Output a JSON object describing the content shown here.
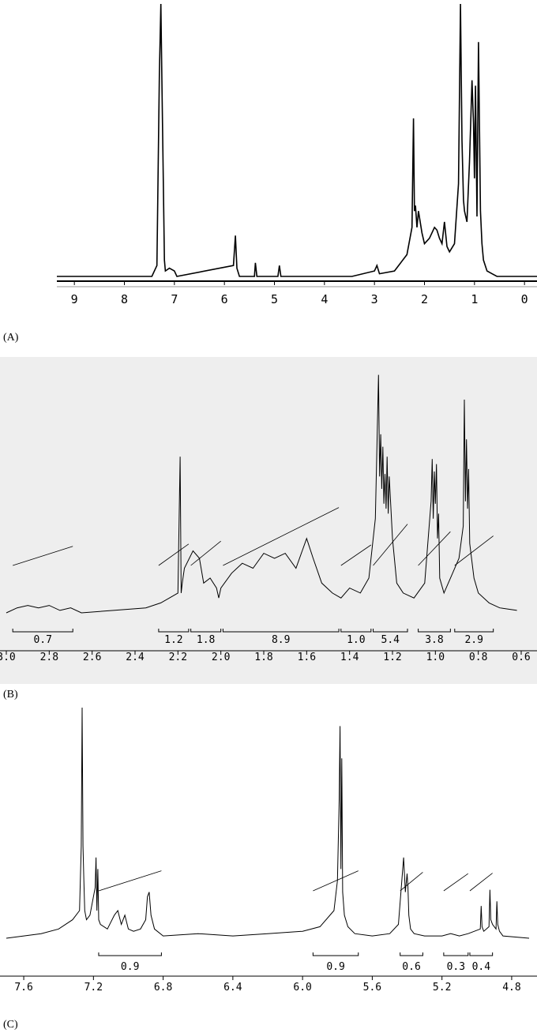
{
  "figure": {
    "panels": [
      {
        "id": "A",
        "caption": "(A)"
      },
      {
        "id": "B",
        "caption": "(B)"
      },
      {
        "id": "C",
        "caption": "(C)"
      }
    ]
  },
  "chart_data": [
    {
      "type": "line",
      "panel": "A",
      "xlabel": "",
      "ylabel": "",
      "xlim": [
        9.35,
        -0.25
      ],
      "x_reversed": true,
      "ticks": [
        "9",
        "8",
        "7",
        "6",
        "5",
        "4",
        "3",
        "2",
        "1",
        "0"
      ],
      "tick_values": [
        9,
        8,
        7,
        6,
        5,
        4,
        3,
        2,
        1,
        0
      ],
      "series": [
        {
          "x": [
            9.35,
            7.45,
            7.35,
            7.3,
            7.27,
            7.25,
            7.2,
            7.18,
            7.1,
            7.0,
            6.95,
            5.82,
            5.78,
            5.75,
            5.7,
            5.4,
            5.38,
            5.35,
            4.93,
            4.9,
            4.87,
            3.45,
            3.0,
            2.95,
            2.9,
            2.6,
            2.35,
            2.25,
            2.22,
            2.2,
            2.18,
            2.15,
            2.12,
            2.05,
            2.0,
            1.9,
            1.8,
            1.75,
            1.7,
            1.65,
            1.6,
            1.55,
            1.5,
            1.4,
            1.32,
            1.28,
            1.25,
            1.22,
            1.2,
            1.15,
            1.1,
            1.05,
            1.02,
            1.0,
            0.98,
            0.95,
            0.92,
            0.88,
            0.85,
            0.82,
            0.75,
            0.65,
            0.55,
            -0.25
          ],
          "y": [
            0.0,
            0.0,
            0.04,
            0.74,
            1.0,
            0.72,
            0.06,
            0.02,
            0.03,
            0.02,
            0.0,
            0.04,
            0.15,
            0.03,
            0.0,
            0.0,
            0.05,
            0.0,
            0.0,
            0.04,
            0.0,
            0.0,
            0.02,
            0.04,
            0.01,
            0.02,
            0.08,
            0.18,
            0.58,
            0.24,
            0.26,
            0.18,
            0.24,
            0.16,
            0.12,
            0.14,
            0.18,
            0.17,
            0.14,
            0.12,
            0.2,
            0.11,
            0.09,
            0.12,
            0.34,
            1.0,
            0.5,
            0.28,
            0.24,
            0.2,
            0.42,
            0.72,
            0.56,
            0.36,
            0.7,
            0.22,
            0.86,
            0.24,
            0.12,
            0.06,
            0.02,
            0.01,
            0.0,
            0.0
          ]
        }
      ]
    },
    {
      "type": "line",
      "panel": "B",
      "xlabel": "",
      "ylabel": "",
      "xlim": [
        3.0,
        0.6
      ],
      "x_reversed": true,
      "ticks": [
        "3.0",
        "2.8",
        "2.6",
        "2.4",
        "2.2",
        "2.0",
        "1.8",
        "1.6",
        "1.4",
        "1.2",
        "1.0",
        "0.8",
        "0.6"
      ],
      "tick_values": [
        3.0,
        2.8,
        2.6,
        2.4,
        2.2,
        2.0,
        1.8,
        1.6,
        1.4,
        1.2,
        1.0,
        0.8,
        0.6
      ],
      "integrals": [
        {
          "from": 2.97,
          "to": 2.69,
          "label": "0.7"
        },
        {
          "from": 2.29,
          "to": 2.15,
          "label": "1.2"
        },
        {
          "from": 2.14,
          "to": 2.0,
          "label": "1.8"
        },
        {
          "from": 1.99,
          "to": 1.45,
          "label": "8.9"
        },
        {
          "from": 1.44,
          "to": 1.3,
          "label": "1.0"
        },
        {
          "from": 1.29,
          "to": 1.13,
          "label": "5.4"
        },
        {
          "from": 1.08,
          "to": 0.93,
          "label": "3.8"
        },
        {
          "from": 0.91,
          "to": 0.73,
          "label": "2.9"
        }
      ],
      "series": [
        {
          "x": [
            3.0,
            2.95,
            2.9,
            2.85,
            2.8,
            2.75,
            2.7,
            2.65,
            2.5,
            2.35,
            2.28,
            2.24,
            2.2,
            2.19,
            2.185,
            2.18,
            2.17,
            2.13,
            2.1,
            2.08,
            2.05,
            2.02,
            2.01,
            2.0,
            1.95,
            1.9,
            1.85,
            1.8,
            1.75,
            1.7,
            1.65,
            1.6,
            1.57,
            1.53,
            1.48,
            1.44,
            1.4,
            1.35,
            1.31,
            1.28,
            1.265,
            1.26,
            1.255,
            1.25,
            1.245,
            1.24,
            1.235,
            1.23,
            1.225,
            1.22,
            1.215,
            1.2,
            1.18,
            1.15,
            1.1,
            1.05,
            1.02,
            1.015,
            1.01,
            1.005,
            1.0,
            0.995,
            0.99,
            0.985,
            0.98,
            0.96,
            0.92,
            0.89,
            0.87,
            0.865,
            0.86,
            0.855,
            0.85,
            0.845,
            0.84,
            0.82,
            0.8,
            0.75,
            0.7,
            0.62
          ],
          "y": [
            0.0,
            0.02,
            0.03,
            0.02,
            0.03,
            0.01,
            0.02,
            0.0,
            0.01,
            0.02,
            0.04,
            0.06,
            0.08,
            0.63,
            0.08,
            0.12,
            0.18,
            0.25,
            0.22,
            0.12,
            0.14,
            0.1,
            0.06,
            0.1,
            0.16,
            0.2,
            0.18,
            0.24,
            0.22,
            0.24,
            0.18,
            0.3,
            0.22,
            0.12,
            0.08,
            0.06,
            0.1,
            0.08,
            0.14,
            0.38,
            0.96,
            0.55,
            0.72,
            0.5,
            0.67,
            0.44,
            0.56,
            0.42,
            0.63,
            0.4,
            0.55,
            0.3,
            0.12,
            0.08,
            0.06,
            0.12,
            0.45,
            0.62,
            0.38,
            0.57,
            0.44,
            0.6,
            0.3,
            0.4,
            0.14,
            0.08,
            0.16,
            0.22,
            0.35,
            0.86,
            0.45,
            0.7,
            0.42,
            0.58,
            0.28,
            0.14,
            0.08,
            0.04,
            0.02,
            0.01
          ]
        }
      ]
    },
    {
      "type": "line",
      "panel": "C",
      "xlabel": "",
      "ylabel": "",
      "xlim": [
        7.7,
        4.7
      ],
      "x_reversed": true,
      "ticks": [
        "7.6",
        "7.2",
        "6.8",
        "6.4",
        "6.0",
        "5.6",
        "5.2",
        "4.8"
      ],
      "tick_values": [
        7.6,
        7.2,
        6.8,
        6.4,
        6.0,
        5.6,
        5.2,
        4.8
      ],
      "integrals": [
        {
          "from": 7.17,
          "to": 6.81,
          "label": "0.9"
        },
        {
          "from": 5.94,
          "to": 5.68,
          "label": "0.9"
        },
        {
          "from": 5.44,
          "to": 5.31,
          "label": "0.6"
        },
        {
          "from": 5.19,
          "to": 5.05,
          "label": "0.3"
        },
        {
          "from": 5.04,
          "to": 4.91,
          "label": "0.4"
        }
      ],
      "series": [
        {
          "x": [
            7.7,
            7.5,
            7.4,
            7.32,
            7.28,
            7.27,
            7.265,
            7.26,
            7.255,
            7.25,
            7.24,
            7.22,
            7.19,
            7.185,
            7.18,
            7.175,
            7.17,
            7.16,
            7.12,
            7.08,
            7.06,
            7.04,
            7.02,
            7.0,
            6.97,
            6.93,
            6.9,
            6.89,
            6.88,
            6.87,
            6.85,
            6.8,
            6.6,
            6.4,
            6.2,
            6.0,
            5.9,
            5.82,
            5.8,
            5.79,
            5.785,
            5.78,
            5.775,
            5.77,
            5.76,
            5.74,
            5.7,
            5.6,
            5.5,
            5.45,
            5.42,
            5.41,
            5.4,
            5.395,
            5.39,
            5.38,
            5.36,
            5.3,
            5.2,
            5.15,
            5.1,
            5.05,
            4.98,
            4.975,
            4.97,
            4.96,
            4.93,
            4.925,
            4.92,
            4.91,
            4.89,
            4.885,
            4.88,
            4.87,
            4.85,
            4.7
          ],
          "y": [
            0.0,
            0.02,
            0.04,
            0.08,
            0.12,
            0.4,
            1.0,
            0.4,
            0.25,
            0.12,
            0.08,
            0.1,
            0.22,
            0.35,
            0.12,
            0.3,
            0.08,
            0.06,
            0.04,
            0.1,
            0.12,
            0.06,
            0.1,
            0.04,
            0.03,
            0.04,
            0.08,
            0.18,
            0.2,
            0.1,
            0.04,
            0.01,
            0.02,
            0.01,
            0.02,
            0.03,
            0.05,
            0.12,
            0.25,
            0.6,
            0.92,
            0.3,
            0.78,
            0.2,
            0.1,
            0.05,
            0.02,
            0.01,
            0.02,
            0.06,
            0.35,
            0.2,
            0.28,
            0.22,
            0.1,
            0.04,
            0.02,
            0.01,
            0.01,
            0.02,
            0.01,
            0.02,
            0.04,
            0.14,
            0.05,
            0.03,
            0.05,
            0.21,
            0.08,
            0.06,
            0.04,
            0.16,
            0.06,
            0.03,
            0.01,
            0.0
          ]
        }
      ]
    }
  ]
}
